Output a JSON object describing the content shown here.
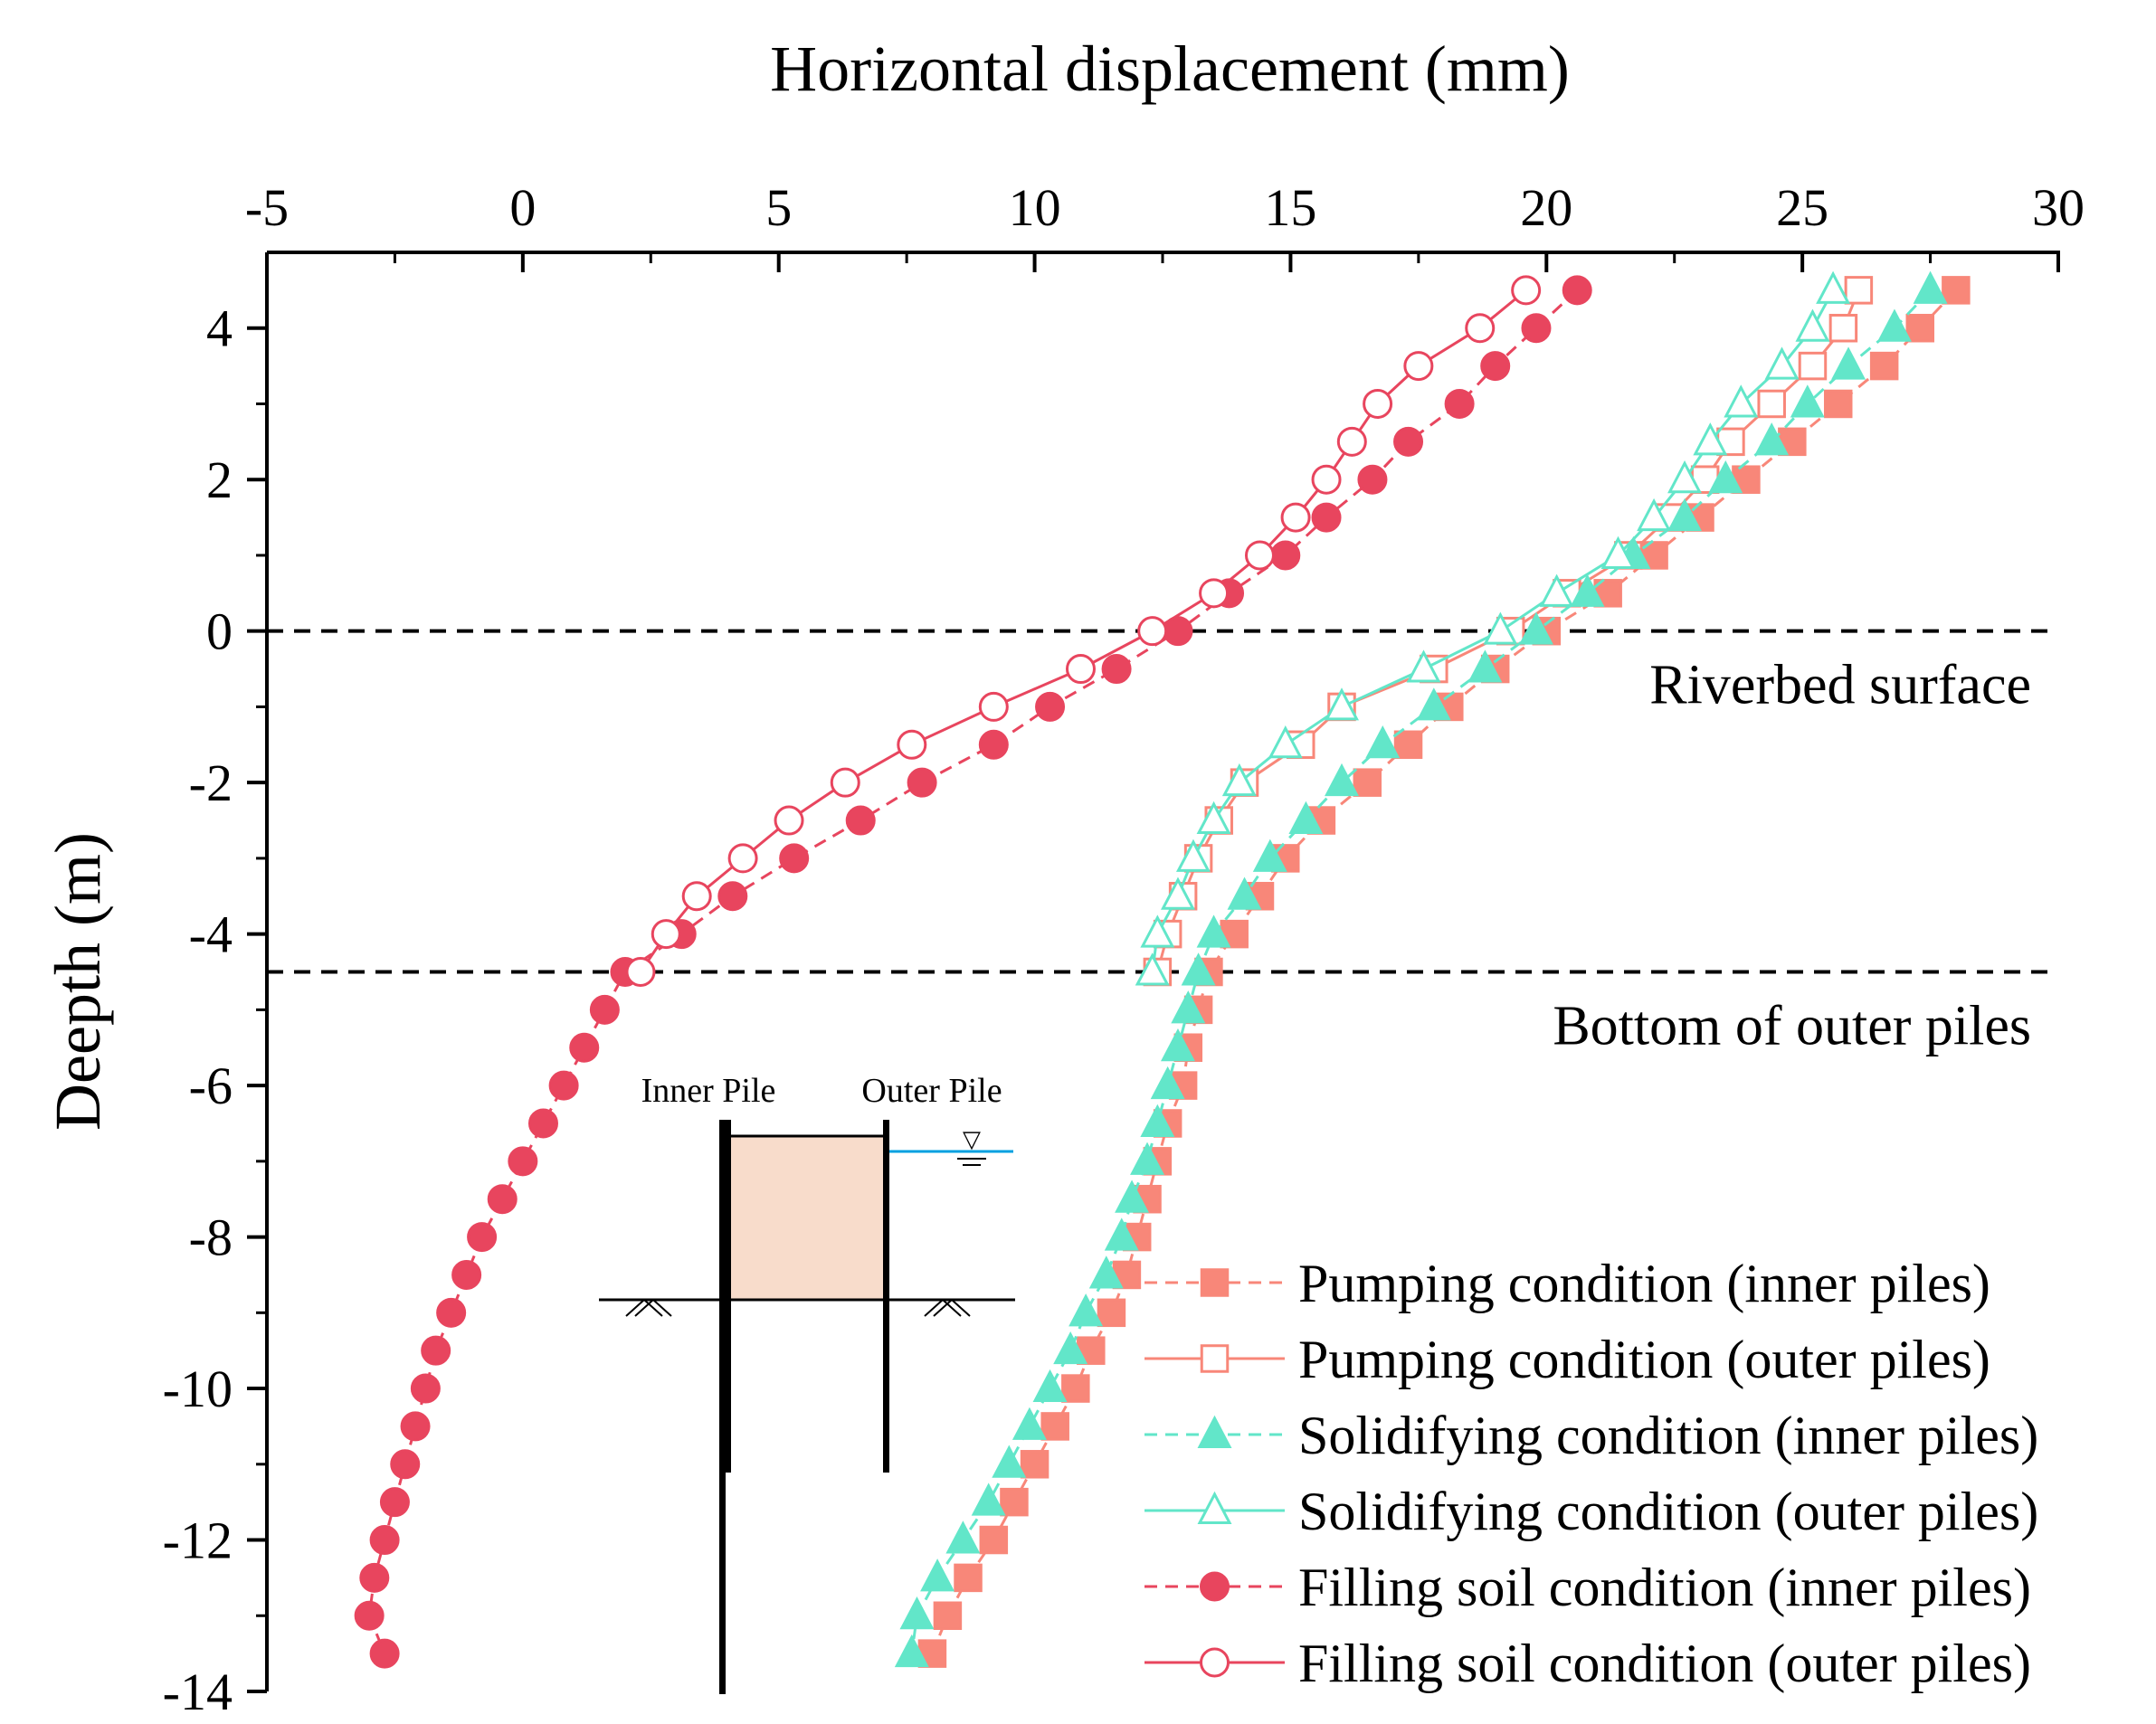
{
  "chart_data": {
    "type": "line",
    "xlabel": "Horizontal displacement (mm)",
    "ylabel": "Deepth (m)",
    "xlim": [
      -5,
      30
    ],
    "ylim": [
      -14,
      5
    ],
    "xticks": [
      -5,
      0,
      5,
      10,
      15,
      20,
      25,
      30
    ],
    "yticks": [
      4,
      2,
      0,
      -2,
      -4,
      -6,
      -8,
      -10,
      -12,
      -14
    ],
    "x_axis_position": "top",
    "legend_position": "bottom-right",
    "reference_lines": [
      {
        "y": 0,
        "label": "Riverbed surface"
      },
      {
        "y": -4.5,
        "label": "Bottom of outer piles"
      }
    ],
    "colors": {
      "pumping": "#F88779",
      "solidifying": "#62E6C9",
      "filling": "#E8455E",
      "water": "#00A0E0",
      "soil": "#F8DCCB"
    },
    "inset": {
      "inner_pile_label": "Inner Pile",
      "outer_pile_label": "Outer Pile",
      "water_level_symbol": "▽"
    },
    "series": [
      {
        "name": "Pumping condition (inner piles)",
        "color": "#F88779",
        "marker": "square",
        "filled": true,
        "dash": true,
        "points": [
          [
            28.0,
            4.5
          ],
          [
            27.3,
            4.0
          ],
          [
            26.6,
            3.5
          ],
          [
            25.7,
            3.0
          ],
          [
            24.8,
            2.5
          ],
          [
            23.9,
            2.0
          ],
          [
            23.0,
            1.5
          ],
          [
            22.1,
            1.0
          ],
          [
            21.2,
            0.5
          ],
          [
            20.0,
            0.0
          ],
          [
            19.0,
            -0.5
          ],
          [
            18.1,
            -1.0
          ],
          [
            17.3,
            -1.5
          ],
          [
            16.5,
            -2.0
          ],
          [
            15.6,
            -2.5
          ],
          [
            14.9,
            -3.0
          ],
          [
            14.4,
            -3.5
          ],
          [
            13.9,
            -4.0
          ],
          [
            13.4,
            -4.5
          ],
          [
            13.2,
            -5.0
          ],
          [
            13.0,
            -5.5
          ],
          [
            12.9,
            -6.0
          ],
          [
            12.6,
            -6.5
          ],
          [
            12.4,
            -7.0
          ],
          [
            12.2,
            -7.5
          ],
          [
            12.0,
            -8.0
          ],
          [
            11.8,
            -8.5
          ],
          [
            11.5,
            -9.0
          ],
          [
            11.1,
            -9.5
          ],
          [
            10.8,
            -10.0
          ],
          [
            10.4,
            -10.5
          ],
          [
            10.0,
            -11.0
          ],
          [
            9.6,
            -11.5
          ],
          [
            9.2,
            -12.0
          ],
          [
            8.7,
            -12.5
          ],
          [
            8.3,
            -13.0
          ],
          [
            8.0,
            -13.5
          ]
        ]
      },
      {
        "name": "Pumping condition (outer piles)",
        "color": "#F88779",
        "marker": "square",
        "filled": false,
        "dash": false,
        "points": [
          [
            26.1,
            4.5
          ],
          [
            25.8,
            4.0
          ],
          [
            25.2,
            3.5
          ],
          [
            24.4,
            3.0
          ],
          [
            23.6,
            2.5
          ],
          [
            23.1,
            2.0
          ],
          [
            22.4,
            1.5
          ],
          [
            21.6,
            1.0
          ],
          [
            20.4,
            0.5
          ],
          [
            19.3,
            0.0
          ],
          [
            17.8,
            -0.5
          ],
          [
            16.0,
            -1.0
          ],
          [
            15.2,
            -1.5
          ],
          [
            14.1,
            -2.0
          ],
          [
            13.6,
            -2.5
          ],
          [
            13.2,
            -3.0
          ],
          [
            12.9,
            -3.5
          ],
          [
            12.6,
            -4.0
          ],
          [
            12.4,
            -4.5
          ]
        ]
      },
      {
        "name": "Solidifying condition (inner piles)",
        "color": "#62E6C9",
        "marker": "triangle",
        "filled": true,
        "dash": true,
        "points": [
          [
            27.5,
            4.5
          ],
          [
            26.8,
            4.0
          ],
          [
            25.9,
            3.5
          ],
          [
            25.1,
            3.0
          ],
          [
            24.4,
            2.5
          ],
          [
            23.5,
            2.0
          ],
          [
            22.7,
            1.5
          ],
          [
            21.7,
            1.0
          ],
          [
            20.8,
            0.5
          ],
          [
            19.8,
            0.0
          ],
          [
            18.8,
            -0.5
          ],
          [
            17.8,
            -1.0
          ],
          [
            16.8,
            -1.5
          ],
          [
            16.0,
            -2.0
          ],
          [
            15.3,
            -2.5
          ],
          [
            14.6,
            -3.0
          ],
          [
            14.1,
            -3.5
          ],
          [
            13.5,
            -4.0
          ],
          [
            13.2,
            -4.5
          ],
          [
            13.0,
            -5.0
          ],
          [
            12.8,
            -5.5
          ],
          [
            12.6,
            -6.0
          ],
          [
            12.4,
            -6.5
          ],
          [
            12.2,
            -7.0
          ],
          [
            11.9,
            -7.5
          ],
          [
            11.7,
            -8.0
          ],
          [
            11.4,
            -8.5
          ],
          [
            11.0,
            -9.0
          ],
          [
            10.7,
            -9.5
          ],
          [
            10.3,
            -10.0
          ],
          [
            9.9,
            -10.5
          ],
          [
            9.5,
            -11.0
          ],
          [
            9.1,
            -11.5
          ],
          [
            8.6,
            -12.0
          ],
          [
            8.1,
            -12.5
          ],
          [
            7.7,
            -13.0
          ],
          [
            7.6,
            -13.5
          ]
        ]
      },
      {
        "name": "Solidifying condition (outer piles)",
        "color": "#62E6C9",
        "marker": "triangle",
        "filled": false,
        "dash": false,
        "points": [
          [
            25.6,
            4.5
          ],
          [
            25.2,
            4.0
          ],
          [
            24.6,
            3.5
          ],
          [
            23.8,
            3.0
          ],
          [
            23.2,
            2.5
          ],
          [
            22.7,
            2.0
          ],
          [
            22.1,
            1.5
          ],
          [
            21.4,
            1.0
          ],
          [
            20.2,
            0.5
          ],
          [
            19.1,
            0.0
          ],
          [
            17.6,
            -0.5
          ],
          [
            16.0,
            -1.0
          ],
          [
            14.9,
            -1.5
          ],
          [
            14.0,
            -2.0
          ],
          [
            13.5,
            -2.5
          ],
          [
            13.1,
            -3.0
          ],
          [
            12.8,
            -3.5
          ],
          [
            12.4,
            -4.0
          ],
          [
            12.3,
            -4.5
          ]
        ]
      },
      {
        "name": "Filling soil condition (inner piles)",
        "color": "#E8455E",
        "marker": "circle",
        "filled": true,
        "dash": true,
        "points": [
          [
            20.6,
            4.5
          ],
          [
            19.8,
            4.0
          ],
          [
            19.0,
            3.5
          ],
          [
            18.3,
            3.0
          ],
          [
            17.3,
            2.5
          ],
          [
            16.6,
            2.0
          ],
          [
            15.7,
            1.5
          ],
          [
            14.9,
            1.0
          ],
          [
            13.8,
            0.5
          ],
          [
            12.8,
            0.0
          ],
          [
            11.6,
            -0.5
          ],
          [
            10.3,
            -1.0
          ],
          [
            9.2,
            -1.5
          ],
          [
            7.8,
            -2.0
          ],
          [
            6.6,
            -2.5
          ],
          [
            5.3,
            -3.0
          ],
          [
            4.1,
            -3.5
          ],
          [
            3.1,
            -4.0
          ],
          [
            2.0,
            -4.5
          ],
          [
            1.6,
            -5.0
          ],
          [
            1.2,
            -5.5
          ],
          [
            0.8,
            -6.0
          ],
          [
            0.4,
            -6.5
          ],
          [
            0.0,
            -7.0
          ],
          [
            -0.4,
            -7.5
          ],
          [
            -0.8,
            -8.0
          ],
          [
            -1.1,
            -8.5
          ],
          [
            -1.4,
            -9.0
          ],
          [
            -1.7,
            -9.5
          ],
          [
            -1.9,
            -10.0
          ],
          [
            -2.1,
            -10.5
          ],
          [
            -2.3,
            -11.0
          ],
          [
            -2.5,
            -11.5
          ],
          [
            -2.7,
            -12.0
          ],
          [
            -2.9,
            -12.5
          ],
          [
            -3.0,
            -13.0
          ],
          [
            -2.7,
            -13.5
          ]
        ]
      },
      {
        "name": "Filling soil condition (outer piles)",
        "color": "#E8455E",
        "marker": "circle",
        "filled": false,
        "dash": false,
        "points": [
          [
            19.6,
            4.5
          ],
          [
            18.7,
            4.0
          ],
          [
            17.5,
            3.5
          ],
          [
            16.7,
            3.0
          ],
          [
            16.2,
            2.5
          ],
          [
            15.7,
            2.0
          ],
          [
            15.1,
            1.5
          ],
          [
            14.4,
            1.0
          ],
          [
            13.5,
            0.5
          ],
          [
            12.3,
            0.0
          ],
          [
            10.9,
            -0.5
          ],
          [
            9.2,
            -1.0
          ],
          [
            7.6,
            -1.5
          ],
          [
            6.3,
            -2.0
          ],
          [
            5.2,
            -2.5
          ],
          [
            4.3,
            -3.0
          ],
          [
            3.4,
            -3.5
          ],
          [
            2.8,
            -4.0
          ],
          [
            2.3,
            -4.5
          ]
        ]
      }
    ]
  }
}
